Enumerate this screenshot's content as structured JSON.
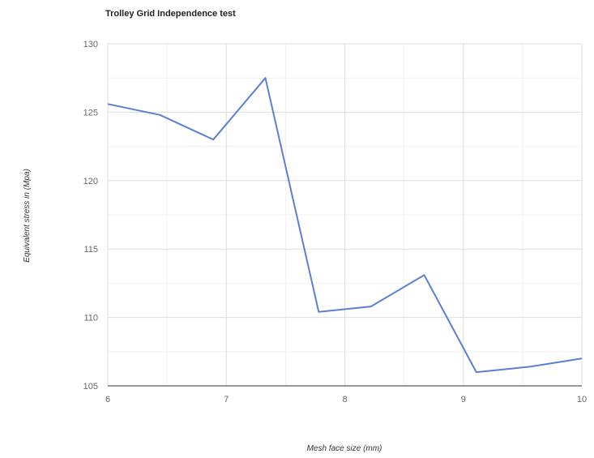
{
  "chart_data": {
    "type": "line",
    "title": "Trolley Grid Independence test",
    "xlabel": "Mesh face size (mm)",
    "ylabel": "Equivalent stress in (Mpa)",
    "xlim": [
      6,
      10
    ],
    "ylim": [
      105,
      130
    ],
    "x_ticks": [
      6,
      7,
      8,
      9,
      10
    ],
    "y_ticks": [
      105,
      110,
      115,
      120,
      125,
      130
    ],
    "grid": true,
    "legend": "none",
    "series": [
      {
        "color": "#5b7fd6",
        "x": [
          6.0,
          6.44,
          6.89,
          7.33,
          7.78,
          8.22,
          8.67,
          9.11,
          9.56,
          10.0
        ],
        "y": [
          125.6,
          124.8,
          123.0,
          127.5,
          110.4,
          110.8,
          113.1,
          106.0,
          106.4,
          107.0
        ]
      }
    ]
  }
}
